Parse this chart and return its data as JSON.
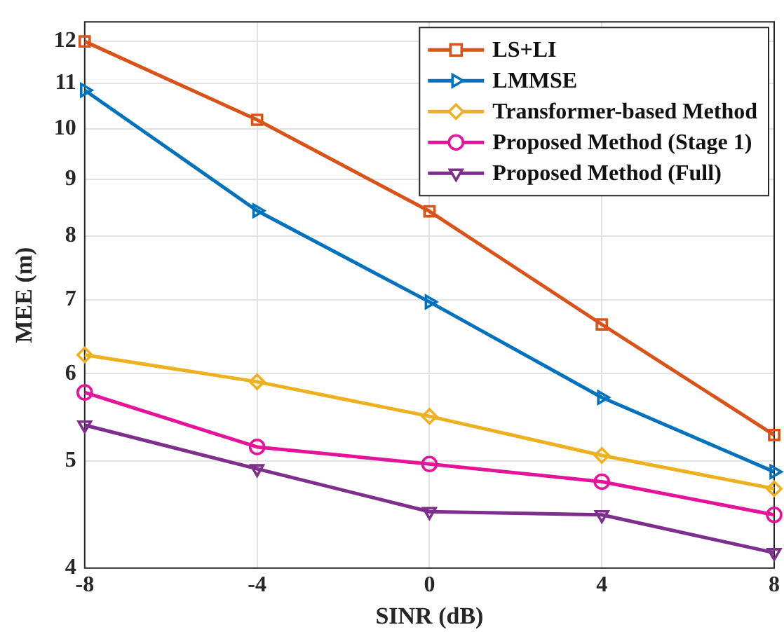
{
  "chart_data": {
    "type": "line",
    "xlabel": "SINR (dB)",
    "ylabel": "MEE (m)",
    "x": [
      -8,
      -4,
      0,
      4,
      8
    ],
    "xlim": [
      -8,
      8
    ],
    "xticks": [
      -8,
      -4,
      0,
      4,
      8
    ],
    "ylim": [
      4,
      12.5
    ],
    "yticks": [
      4,
      5,
      6,
      7,
      8,
      9,
      10,
      11,
      12
    ],
    "log": "y",
    "grid": true,
    "legend": "top right",
    "line_style": "solid",
    "series": [
      {
        "name": "LS+LI",
        "color": "#d95319",
        "marker": "square",
        "values": [
          12.0,
          10.19,
          8.42,
          6.65,
          5.28
        ]
      },
      {
        "name": "LMMSE",
        "color": "#0072bd",
        "marker": "triangle",
        "values": [
          10.84,
          8.43,
          6.97,
          5.71,
          4.89
        ]
      },
      {
        "name": "Transformer-based Method",
        "color": "#edb120",
        "marker": "diamond",
        "values": [
          6.24,
          5.9,
          5.49,
          5.06,
          4.72
        ]
      },
      {
        "name": "Proposed Method (Stage 1)",
        "color": "#e5139a",
        "marker": "circle",
        "values": [
          5.77,
          5.15,
          4.97,
          4.79,
          4.47
        ]
      },
      {
        "name": "Proposed Method (Full)",
        "color": "#7e2f8e",
        "marker": "triangle",
        "values": [
          5.39,
          4.92,
          4.5,
          4.47,
          4.13
        ]
      }
    ]
  }
}
